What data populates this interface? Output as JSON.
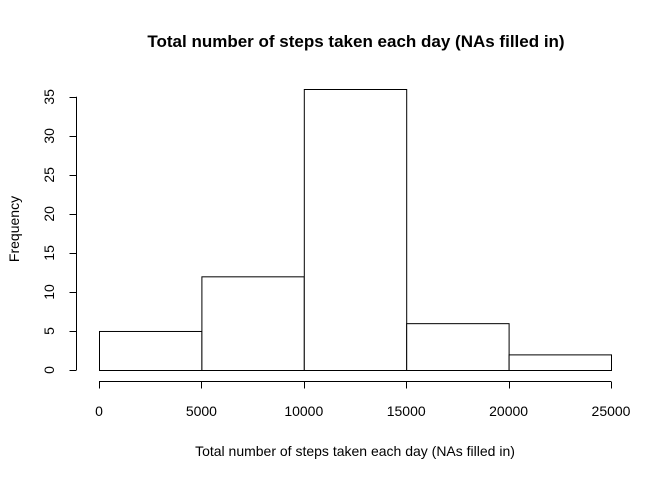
{
  "chart_data": {
    "type": "bar",
    "subtype": "histogram",
    "title": "Total number of steps taken each day (NAs filled in)",
    "xlabel": "Total number of steps taken each day (NAs filled in)",
    "ylabel": "Frequency",
    "bins": [
      {
        "from": 0,
        "to": 5000,
        "count": 5
      },
      {
        "from": 5000,
        "to": 10000,
        "count": 12
      },
      {
        "from": 10000,
        "to": 15000,
        "count": 36
      },
      {
        "from": 15000,
        "to": 20000,
        "count": 6
      },
      {
        "from": 20000,
        "to": 25000,
        "count": 2
      }
    ],
    "xlim": [
      0,
      25000
    ],
    "ylim": [
      0,
      36
    ],
    "x_ticks": [
      0,
      5000,
      10000,
      15000,
      20000,
      25000
    ],
    "y_ticks": [
      0,
      5,
      10,
      15,
      20,
      25,
      30,
      35
    ],
    "grid": false,
    "legend": "none",
    "colors": {
      "bar_fill": "#ffffff",
      "bar_stroke": "#000000",
      "axis": "#000000"
    }
  }
}
